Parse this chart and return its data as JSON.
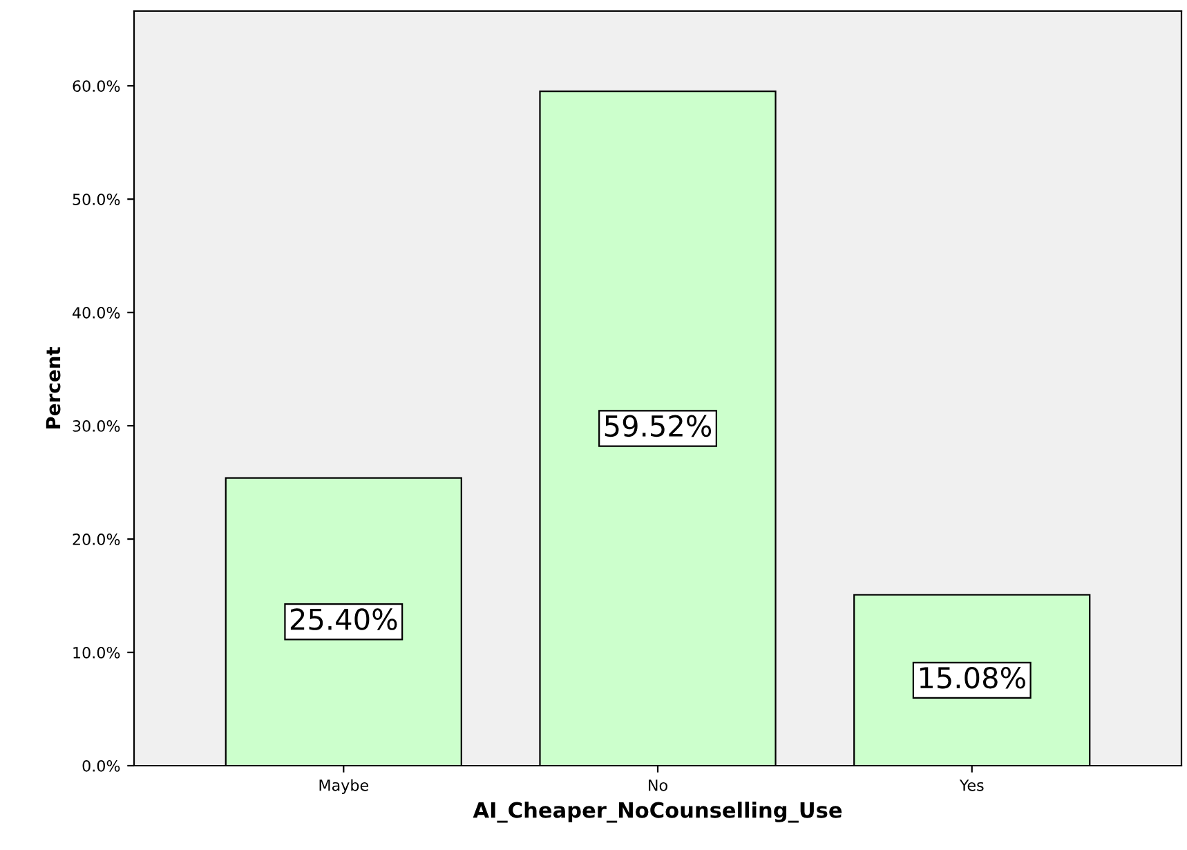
{
  "chart_data": {
    "type": "bar",
    "xlabel": "AI_Cheaper_NoCounselling_Use",
    "ylabel": "Percent",
    "categories": [
      "Maybe",
      "No",
      "Yes"
    ],
    "values": [
      25.4,
      59.52,
      15.08
    ],
    "value_labels": [
      "25.40%",
      "59.52%",
      "15.08%"
    ],
    "color": "#ccffcc",
    "ylim": [
      0,
      66.6
    ],
    "yticks": [
      {
        "value": 0,
        "label": "0.0%"
      },
      {
        "value": 10,
        "label": "10.0%"
      },
      {
        "value": 20,
        "label": "20.0%"
      },
      {
        "value": 30,
        "label": "30.0%"
      },
      {
        "value": 40,
        "label": "40.0%"
      },
      {
        "value": 50,
        "label": "50.0%"
      },
      {
        "value": 60,
        "label": "60.0%"
      }
    ],
    "grid": false
  }
}
